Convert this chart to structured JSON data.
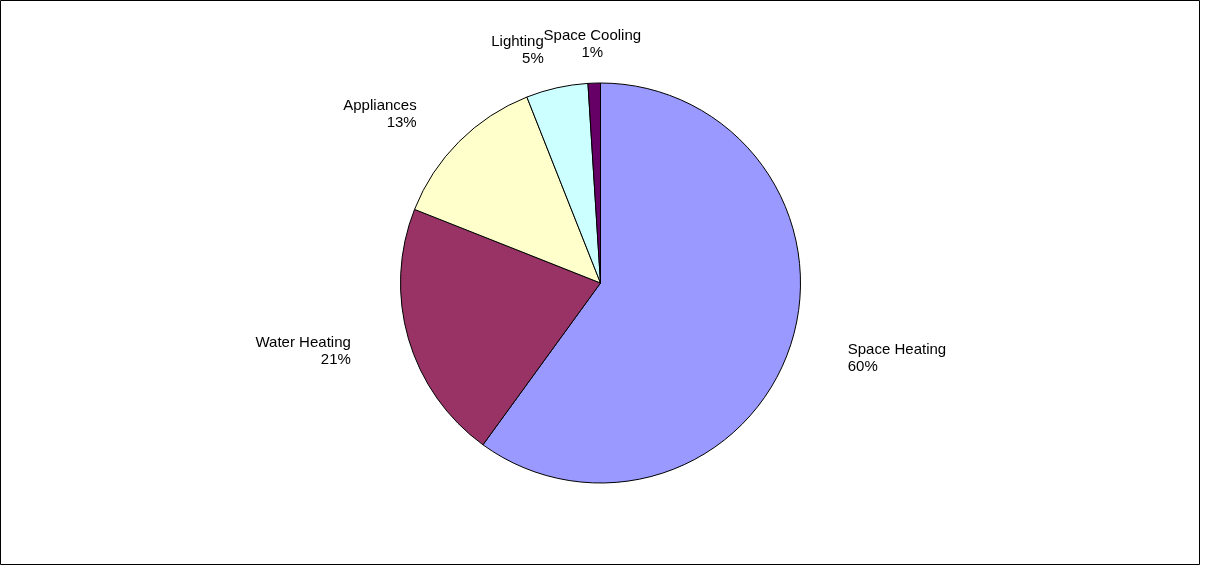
{
  "chart_data": {
    "type": "pie",
    "categories": [
      "Space Heating",
      "Water Heating",
      "Appliances",
      "Lighting",
      "Space Cooling"
    ],
    "values": [
      60,
      21,
      13,
      5,
      1
    ],
    "colors": [
      "#9999ff",
      "#993366",
      "#ffffcc",
      "#ccffff",
      "#660066"
    ],
    "value_labels": [
      "60%",
      "21%",
      "13%",
      "5%",
      "1%"
    ]
  }
}
